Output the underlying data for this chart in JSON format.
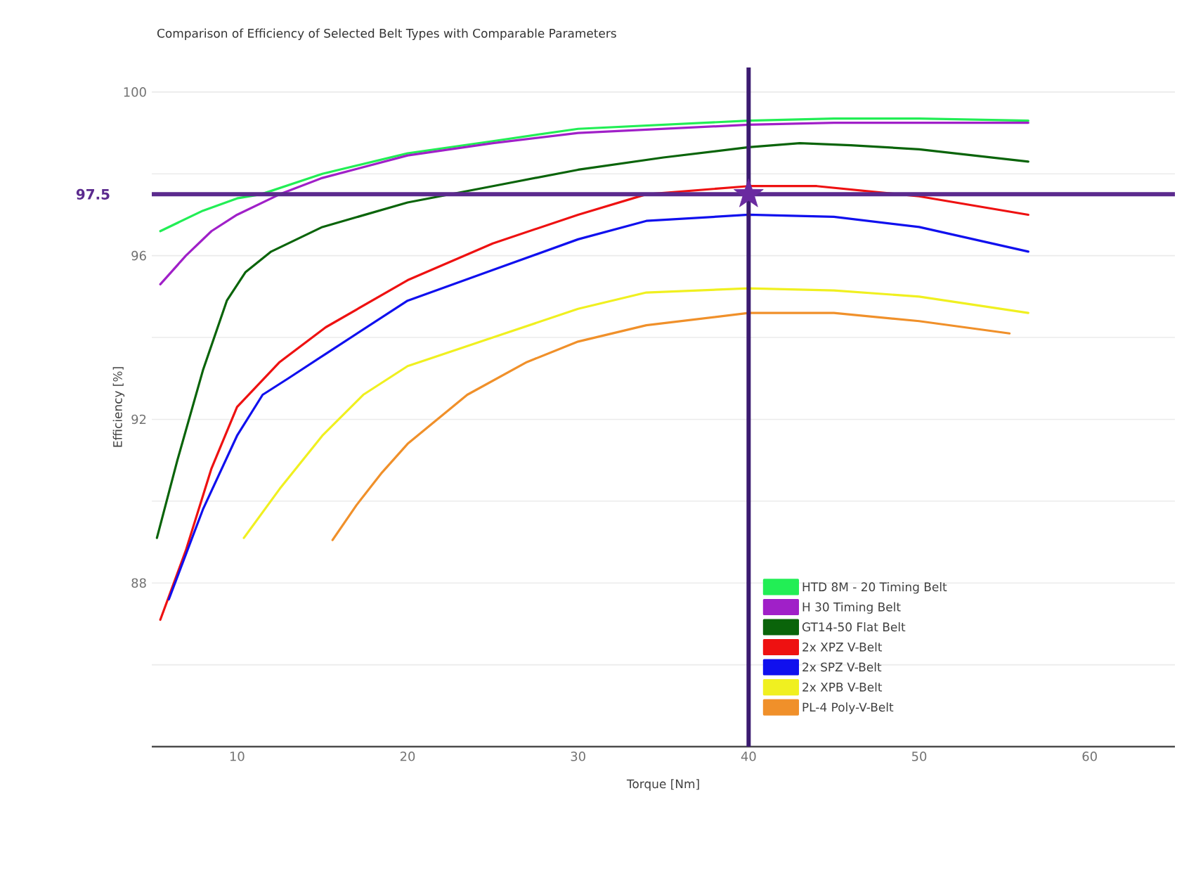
{
  "chart_data": {
    "type": "line",
    "title": "Comparison of Efficiency of Selected Belt Types with Comparable Parameters",
    "xlabel": "Torque [Nm]",
    "ylabel": "Efficiency [%]",
    "xlim": [
      5,
      65
    ],
    "ylim": [
      84,
      100.6
    ],
    "xticks": [
      10,
      20,
      30,
      40,
      50,
      60
    ],
    "yticks": [
      {
        "value": 86,
        "label": null
      },
      88,
      {
        "value": 90,
        "label": null
      },
      92,
      {
        "value": 94,
        "label": null
      },
      96,
      {
        "value": 98,
        "label": null
      },
      100
    ],
    "grid": "y",
    "legend": "bottom right",
    "series": [
      {
        "name": "HTD 8M - 20 Timing Belt",
        "color": "#22ee55",
        "x": [
          5.5,
          8,
          10,
          11.4,
          15,
          20,
          25,
          30,
          35,
          40,
          45,
          50,
          56.4
        ],
        "values": [
          96.6,
          97.1,
          97.4,
          97.5,
          98.0,
          98.5,
          98.8,
          99.1,
          99.2,
          99.3,
          99.35,
          99.35,
          99.3
        ]
      },
      {
        "name": "H 30 Timing Belt",
        "color": "#a020c8",
        "x": [
          5.5,
          7,
          8.5,
          10,
          12.5,
          15,
          20,
          25,
          30,
          35,
          40,
          45,
          50,
          56.4
        ],
        "values": [
          95.3,
          96.0,
          96.6,
          97.0,
          97.5,
          97.9,
          98.45,
          98.75,
          99.0,
          99.1,
          99.2,
          99.25,
          99.25,
          99.25
        ]
      },
      {
        "name": "GT14-50 Flat Belt",
        "color": "#0a640a",
        "x": [
          5.3,
          6.5,
          8,
          9.4,
          10.5,
          12,
          15,
          20,
          25,
          30,
          35,
          40,
          43,
          46,
          50,
          56.4
        ],
        "values": [
          89.1,
          91.0,
          93.2,
          94.9,
          95.6,
          96.1,
          96.7,
          97.3,
          97.7,
          98.1,
          98.4,
          98.65,
          98.75,
          98.7,
          98.6,
          98.3
        ]
      },
      {
        "name": "2x XPZ V-Belt",
        "color": "#ee1111",
        "x": [
          5.5,
          7,
          8.5,
          10,
          12.5,
          15.2,
          20,
          25,
          30,
          34,
          40,
          44,
          50,
          56.4
        ],
        "values": [
          87.1,
          88.8,
          90.8,
          92.3,
          93.4,
          94.25,
          95.4,
          96.3,
          97.0,
          97.5,
          97.7,
          97.7,
          97.45,
          97.0
        ]
      },
      {
        "name": "2x SPZ V-Belt",
        "color": "#1010ee",
        "x": [
          6,
          8,
          10,
          11.5,
          13,
          15.2,
          20,
          25,
          30,
          34,
          40,
          45,
          50,
          56.4
        ],
        "values": [
          87.6,
          89.8,
          91.6,
          92.6,
          93.0,
          93.6,
          94.9,
          95.65,
          96.4,
          96.85,
          97.0,
          96.95,
          96.7,
          96.1
        ]
      },
      {
        "name": "2x XPB V-Belt",
        "color": "#f0f020",
        "x": [
          10.4,
          12.5,
          15,
          17.4,
          20,
          25,
          30,
          34,
          40,
          45,
          50,
          56.4
        ],
        "values": [
          89.1,
          90.3,
          91.6,
          92.6,
          93.3,
          94.0,
          94.7,
          95.1,
          95.2,
          95.15,
          95.0,
          94.6
        ]
      },
      {
        "name": "PL-4 Poly-V-Belt",
        "color": "#f0902a",
        "x": [
          15.6,
          17,
          18.5,
          20,
          23.5,
          27,
          30,
          34,
          40,
          45,
          50,
          55.3
        ],
        "values": [
          89.05,
          89.9,
          90.7,
          91.4,
          92.6,
          93.4,
          93.9,
          94.3,
          94.6,
          94.6,
          94.4,
          94.1
        ]
      },
      {
        "type": "scatter",
        "marker": "star",
        "color": "#6a2aa0",
        "x": [
          40
        ],
        "values": [
          97.5
        ]
      }
    ],
    "ref_lines": [
      {
        "axis": "y",
        "value": 97.5,
        "label": "97.5",
        "color": "#5b2a8e"
      },
      {
        "axis": "x",
        "value": 40,
        "color": "#3b1a70"
      }
    ]
  }
}
